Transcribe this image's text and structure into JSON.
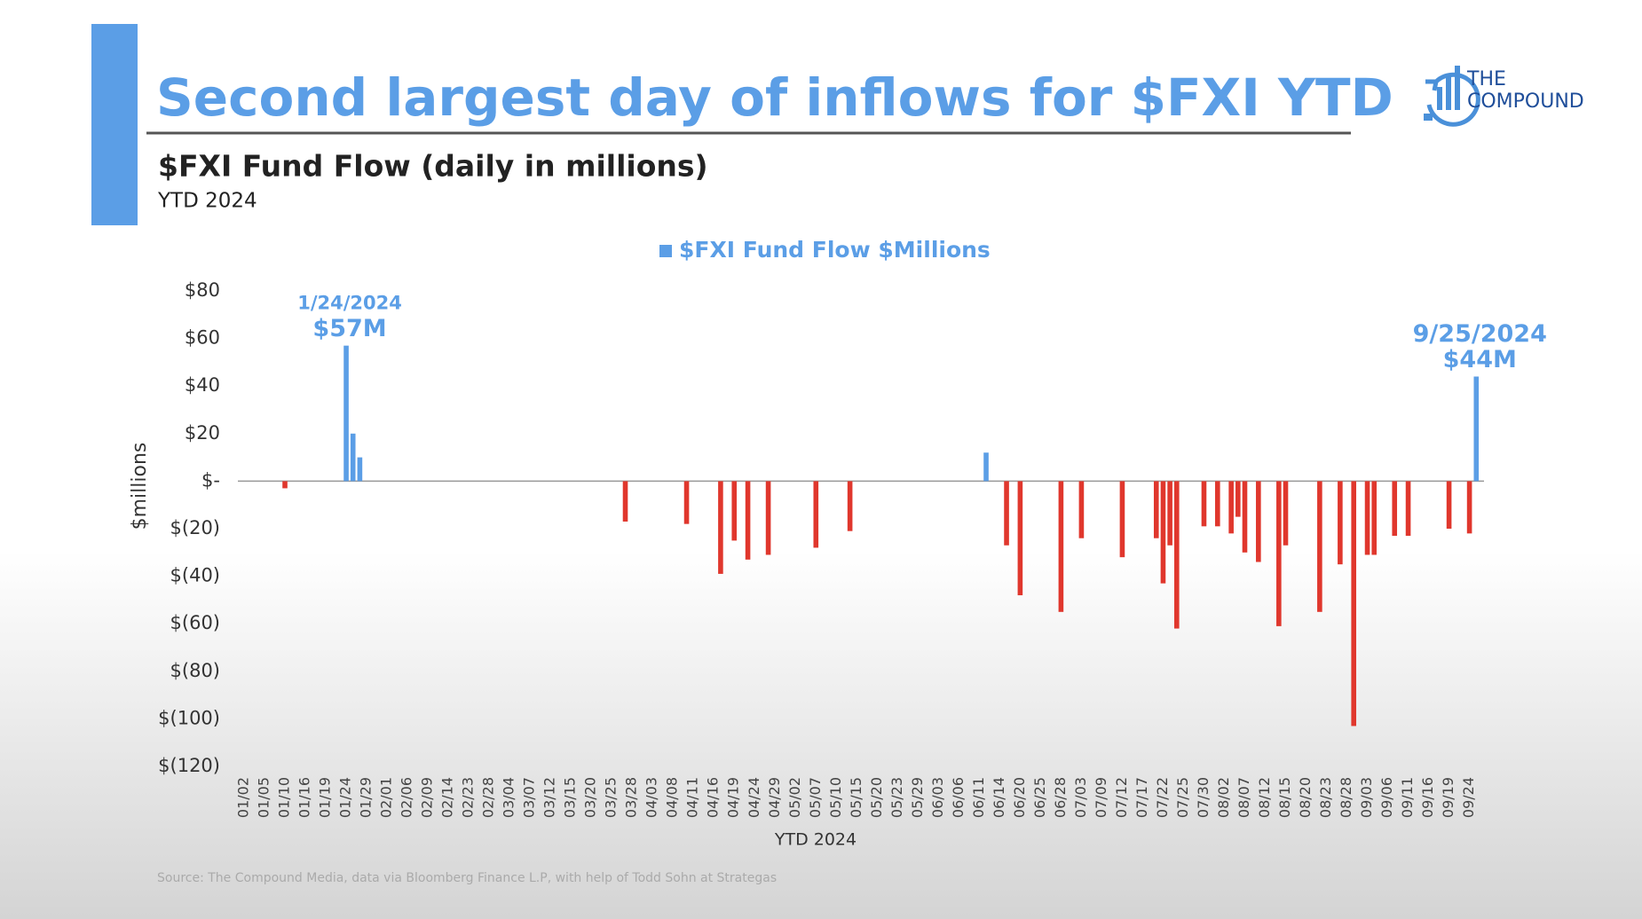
{
  "chart_data": {
    "type": "bar",
    "title": "Second largest day of inflows for $FXI YTD",
    "subtitle": "$FXI Fund Flow (daily in millions)",
    "period": "YTD 2024",
    "x_label": "YTD 2024",
    "y_label": "$millions",
    "source": "Source: The Compound Media, data via Bloomberg Finance L.P, with help of Todd Sohn at Strategas",
    "annotations": [
      "1/24/2024",
      "9/25/2024"
    ],
    "legend": "top",
    "ylim": [
      -120,
      80
    ],
    "yticks": [
      {
        "value": -120,
        "label": "$(120)"
      },
      {
        "value": -100,
        "label": "$(100)"
      },
      {
        "value": -80,
        "label": "$(80)"
      },
      {
        "value": -60,
        "label": "$(60)"
      },
      {
        "value": -40,
        "label": "$(40)"
      },
      {
        "value": -20,
        "label": "$(20)"
      },
      {
        "value": 0,
        "label": "$-"
      },
      {
        "value": 20,
        "label": "$20"
      },
      {
        "value": 40,
        "label": "$40"
      },
      {
        "value": 60,
        "label": "$60"
      },
      {
        "value": 80,
        "label": "$80"
      }
    ],
    "categories": [
      "01/02",
      null,
      null,
      "01/05",
      null,
      null,
      "01/10",
      null,
      null,
      "01/16",
      null,
      null,
      "01/19",
      null,
      null,
      "01/24",
      null,
      null,
      "01/29",
      null,
      null,
      "02/01",
      null,
      null,
      "02/06",
      null,
      null,
      "02/09",
      null,
      null,
      "02/14",
      null,
      null,
      "02/23",
      null,
      null,
      "02/28",
      null,
      null,
      "03/04",
      null,
      null,
      "03/07",
      null,
      null,
      "03/12",
      null,
      null,
      "03/15",
      null,
      null,
      "03/20",
      null,
      null,
      "03/25",
      null,
      null,
      "03/28",
      null,
      null,
      "04/03",
      null,
      null,
      "04/08",
      null,
      null,
      "04/11",
      null,
      null,
      "04/16",
      null,
      null,
      "04/19",
      null,
      null,
      "04/24",
      null,
      null,
      "04/29",
      null,
      null,
      "05/02",
      null,
      null,
      "05/07",
      null,
      null,
      "05/10",
      null,
      null,
      "05/15",
      null,
      null,
      "05/20",
      null,
      null,
      "05/23",
      null,
      null,
      "05/29",
      null,
      null,
      "06/03",
      null,
      null,
      "06/06",
      null,
      null,
      "06/11",
      null,
      null,
      "06/14",
      null,
      null,
      "06/20",
      null,
      null,
      "06/25",
      null,
      null,
      "06/28",
      null,
      null,
      "07/03",
      null,
      null,
      "07/09",
      null,
      null,
      "07/12",
      null,
      null,
      "07/17",
      null,
      null,
      "07/22",
      null,
      null,
      "07/25",
      null,
      null,
      "07/30",
      null,
      null,
      "08/02",
      null,
      null,
      "08/07",
      null,
      null,
      "08/12",
      null,
      null,
      "08/15",
      null,
      null,
      "08/20",
      null,
      null,
      "08/23",
      null,
      null,
      "08/28",
      null,
      null,
      "09/03",
      null,
      null,
      "09/06",
      null,
      null,
      "09/11",
      null,
      null,
      "09/16",
      null,
      null,
      "09/19",
      null,
      null,
      "09/24",
      null
    ],
    "series": [
      {
        "name": "$FXI Fund Flow $Millions",
        "color": "#5b9ee6",
        "negative_color": "#e0372d",
        "values": [
          0,
          0,
          0,
          0,
          0,
          0,
          -3,
          0,
          0,
          0,
          0,
          0,
          0,
          0,
          0,
          57,
          20,
          10,
          0,
          0,
          0,
          0,
          0,
          0,
          0,
          0,
          0,
          0,
          0,
          0,
          0,
          0,
          0,
          0,
          0,
          0,
          0,
          0,
          0,
          0,
          0,
          0,
          0,
          0,
          0,
          0,
          0,
          0,
          0,
          0,
          0,
          0,
          0,
          0,
          0,
          0,
          -17,
          0,
          0,
          0,
          0,
          0,
          0,
          0,
          0,
          -18,
          0,
          0,
          0,
          0,
          -39,
          0,
          -25,
          0,
          -33,
          0,
          0,
          -31,
          0,
          0,
          0,
          0,
          0,
          0,
          -28,
          0,
          0,
          0,
          0,
          -21,
          0,
          0,
          0,
          0,
          0,
          0,
          0,
          0,
          0,
          0,
          0,
          0,
          0,
          0,
          0,
          0,
          0,
          0,
          0,
          12,
          0,
          0,
          -27,
          0,
          -48,
          0,
          0,
          0,
          0,
          0,
          -55,
          0,
          0,
          -24,
          0,
          0,
          0,
          0,
          0,
          -32,
          0,
          0,
          0,
          0,
          -24,
          -43,
          -27,
          -62,
          0,
          0,
          0,
          -19,
          0,
          -19,
          0,
          -22,
          -15,
          -30,
          0,
          -34,
          0,
          0,
          -61,
          -27,
          0,
          0,
          0,
          0,
          -55,
          0,
          0,
          -35,
          0,
          -103,
          0,
          -31,
          -31,
          0,
          0,
          -23,
          0,
          -23,
          0,
          0,
          0,
          0,
          0,
          -20,
          0,
          0,
          -22,
          44
        ],
        "value_labels": [
          null,
          null,
          null,
          null,
          null,
          null,
          null,
          null,
          null,
          null,
          null,
          null,
          null,
          null,
          null,
          "$57M",
          null,
          null,
          null,
          null,
          null,
          null,
          null,
          null,
          null,
          null,
          null,
          null,
          null,
          null,
          null,
          null,
          null,
          null,
          null,
          null,
          null,
          null,
          null,
          null,
          null,
          null,
          null,
          null,
          null,
          null,
          null,
          null,
          null,
          null,
          null,
          null,
          null,
          null,
          null,
          null,
          null,
          null,
          null,
          null,
          null,
          null,
          null,
          null,
          null,
          null,
          null,
          null,
          null,
          null,
          null,
          null,
          null,
          null,
          null,
          null,
          null,
          null,
          null,
          null,
          null,
          null,
          null,
          null,
          null,
          null,
          null,
          null,
          null,
          null,
          null,
          null,
          null,
          null,
          null,
          null,
          null,
          null,
          null,
          null,
          null,
          null,
          null,
          null,
          null,
          null,
          null,
          null,
          null,
          null,
          null,
          null,
          null,
          null,
          null,
          null,
          null,
          null,
          null,
          null,
          null,
          null,
          null,
          null,
          null,
          null,
          null,
          null,
          null,
          null,
          null,
          null,
          null,
          null,
          null,
          null,
          null,
          null,
          null,
          null,
          null,
          null,
          null,
          null,
          null,
          null,
          null,
          null,
          null,
          null,
          null,
          null,
          null,
          null,
          null,
          null,
          null,
          null,
          null,
          null,
          null,
          null,
          null,
          null,
          null,
          null,
          null,
          null,
          null,
          null,
          null,
          null,
          null,
          null,
          null,
          null,
          null,
          null,
          null,
          null,
          null,
          "$44M"
        ]
      }
    ]
  },
  "logo": {
    "line1": "THE",
    "line2": "COMPOUND"
  }
}
